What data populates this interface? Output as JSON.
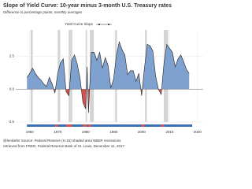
{
  "chart_data": {
    "type": "area",
    "title": "Slope of Yield Curve: 10-year minus 3-month U.S. Treasury rates",
    "subtitle": "Difference in percentage points, monthly averages",
    "caption": [
      "@lenkiefer Source: Federal Reserve (H.15) shaded area NBER recessions",
      "retrieved from FRED, Federal Reserve Bank of St. Louis, December 11, 2017"
    ],
    "series": [
      {
        "name": "Yield Curve Slope",
        "color": "#7fa1cf",
        "line_color": "#222222",
        "negative_color": "#d9534f",
        "x": [
          1959,
          1960,
          1961,
          1962,
          1963,
          1964,
          1965,
          1966,
          1967,
          1968,
          1969,
          1970,
          1971,
          1972,
          1973,
          1974,
          1975,
          1976,
          1977,
          1978,
          1979,
          1980,
          1980.5,
          1981,
          1982,
          1983,
          1984,
          1985,
          1986,
          1987,
          1988,
          1989,
          1990,
          1991,
          1992,
          1993,
          1994,
          1995,
          1996,
          1997,
          1998,
          1999,
          2000,
          2001,
          2002,
          2003,
          2004,
          2005,
          2006,
          2007,
          2008,
          2009,
          2010,
          2011,
          2012,
          2013,
          2014,
          2015,
          2016,
          2017
        ],
        "values": [
          0.9,
          1.2,
          1.6,
          1.2,
          0.9,
          0.7,
          0.4,
          0.2,
          0.9,
          0.4,
          -0.3,
          1.2,
          2.0,
          2.3,
          -0.2,
          -0.5,
          2.2,
          2.6,
          1.9,
          0.8,
          -1.0,
          -1.5,
          1.7,
          -1.8,
          2.8,
          2.8,
          2.2,
          2.8,
          1.6,
          2.4,
          1.8,
          0.1,
          0.8,
          2.6,
          3.6,
          3.0,
          2.6,
          1.1,
          1.4,
          1.4,
          0.6,
          1.2,
          -0.5,
          1.6,
          3.4,
          3.3,
          2.9,
          1.0,
          0.0,
          -0.4,
          2.0,
          3.4,
          3.1,
          2.8,
          1.7,
          2.3,
          2.6,
          2.1,
          1.5,
          1.2
        ]
      }
    ],
    "recessions": [
      [
        1960.3,
        1961.1
      ],
      [
        1969.9,
        1970.9
      ],
      [
        1973.9,
        1975.2
      ],
      [
        1980.0,
        1980.5
      ],
      [
        1981.5,
        1982.9
      ],
      [
        1990.5,
        1991.2
      ],
      [
        2001.2,
        2001.9
      ],
      [
        2007.9,
        2009.5
      ]
    ],
    "recession_color": "#d4d4d4",
    "xlim": [
      1955,
      2022
    ],
    "xticks": [
      1960,
      1970,
      1980,
      1990,
      2000,
      2010,
      2020
    ],
    "ylim": [
      -2.5,
      4.5
    ],
    "yticks": [
      {
        "value": -2.5,
        "label": "-2.5"
      },
      {
        "value": 0,
        "label": "0.0"
      },
      {
        "value": 2.5,
        "label": "2.5"
      }
    ],
    "grid": true
  }
}
